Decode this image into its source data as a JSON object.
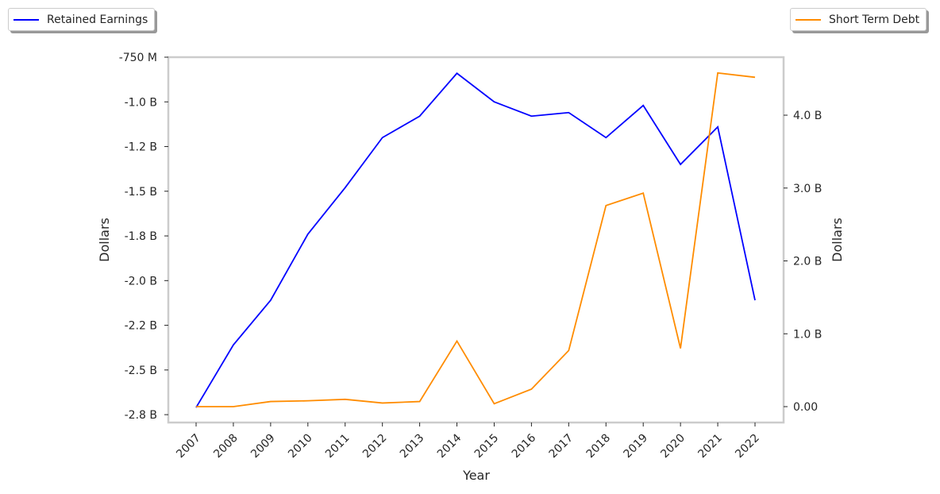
{
  "chart_data": {
    "type": "line",
    "x": [
      2007,
      2008,
      2009,
      2010,
      2011,
      2012,
      2013,
      2014,
      2015,
      2016,
      2017,
      2018,
      2019,
      2020,
      2021,
      2022
    ],
    "xlabel": "Year",
    "series": [
      {
        "name": "Retained Earnings",
        "axis": "left",
        "color": "#0000ff",
        "unit": "B",
        "values": [
          -2.71,
          -2.36,
          -2.11,
          -1.74,
          -1.48,
          -1.2,
          -1.08,
          -0.84,
          -1.0,
          -1.08,
          -1.06,
          -1.2,
          -1.02,
          -1.35,
          -1.14,
          -2.11
        ]
      },
      {
        "name": "Short Term Debt",
        "axis": "right",
        "color": "#ff8c00",
        "unit": "B",
        "values": [
          0.0,
          0.0,
          0.07,
          0.08,
          0.1,
          0.05,
          0.07,
          0.9,
          0.04,
          0.24,
          0.77,
          2.76,
          2.93,
          0.8,
          4.58,
          4.52
        ]
      }
    ],
    "left_axis": {
      "label": "Dollars",
      "ylim": [
        -2.794,
        -0.75
      ],
      "ticks": [
        -0.75,
        -1.0,
        -1.25,
        -1.5,
        -1.75,
        -2.0,
        -2.25,
        -2.5,
        -2.75
      ],
      "tick_labels": [
        "-750 M",
        "-1.0 B",
        "-1.2 B",
        "-1.5 B",
        "-1.8 B",
        "-2.0 B",
        "-2.2 B",
        "-2.5 B",
        "-2.8 B"
      ]
    },
    "right_axis": {
      "label": "Dollars",
      "ylim": [
        -0.218,
        4.796
      ],
      "ticks": [
        0,
        1,
        2,
        3,
        4
      ],
      "tick_labels": [
        "0.00",
        "1.0 B",
        "2.0 B",
        "3.0 B",
        "4.0 B"
      ]
    },
    "legend": {
      "left": "top-left",
      "right": "top-right"
    },
    "grid": false
  }
}
